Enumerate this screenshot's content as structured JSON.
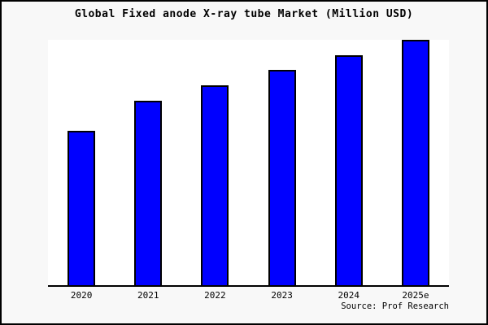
{
  "frame": {
    "background_color": "#f8f8f8",
    "border_color": "#000000",
    "plot_background_color": "#ffffff"
  },
  "title": "Global Fixed anode X-ray tube Market (Million USD)",
  "source": "Source: Prof Research",
  "chart_data": {
    "type": "bar",
    "title": "Global Fixed anode X-ray tube Market (Million USD)",
    "categories": [
      "2020",
      "2021",
      "2022",
      "2023",
      "2024",
      "2025e"
    ],
    "values": [
      62.8,
      75.1,
      81.4,
      87.7,
      93.7,
      100
    ],
    "values_note": "y-axis unlabeled; values estimated as relative index with 2025e = 100",
    "xlabel": "",
    "ylabel": "",
    "ylim": [
      0,
      100
    ],
    "grid": false,
    "legend": false,
    "bar_color": "#0000ff",
    "bar_border_color": "#000000",
    "annotation": "Source: Prof Research"
  }
}
